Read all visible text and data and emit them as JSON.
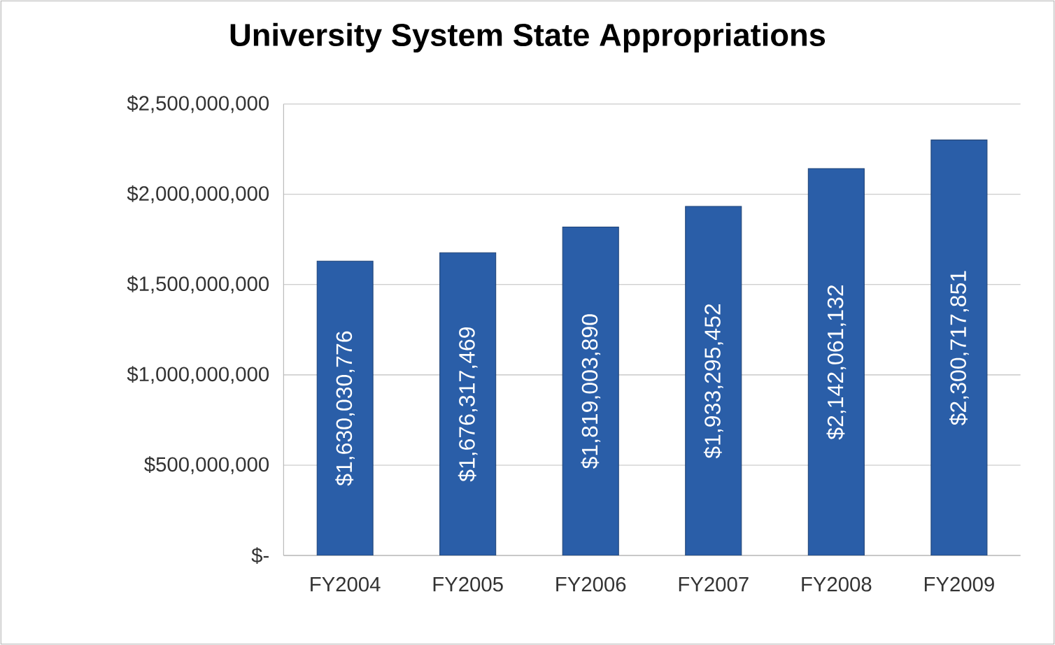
{
  "chart_data": {
    "type": "bar",
    "title": "University System State Appropriations",
    "categories": [
      "FY2004",
      "FY2005",
      "FY2006",
      "FY2007",
      "FY2008",
      "FY2009"
    ],
    "values": [
      1630030776,
      1676317469,
      1819003890,
      1933295452,
      2142061132,
      2300717851
    ],
    "value_labels": [
      "$1,630,030,776",
      "$1,676,317,469",
      "$1,819,003,890",
      "$1,933,295,452",
      "$2,142,061,132",
      "$2,300,717,851"
    ],
    "color": "#2a5ea8",
    "ylim": [
      0,
      2500000000
    ],
    "yticks": [
      {
        "value": 0,
        "label": "$-"
      },
      {
        "value": 500000000,
        "label": "$500,000,000"
      },
      {
        "value": 1000000000,
        "label": "$1,000,000,000"
      },
      {
        "value": 1500000000,
        "label": "$1,500,000,000"
      },
      {
        "value": 2000000000,
        "label": "$2,000,000,000"
      },
      {
        "value": 2500000000,
        "label": "$2,500,000,000"
      }
    ],
    "grid": "y"
  }
}
